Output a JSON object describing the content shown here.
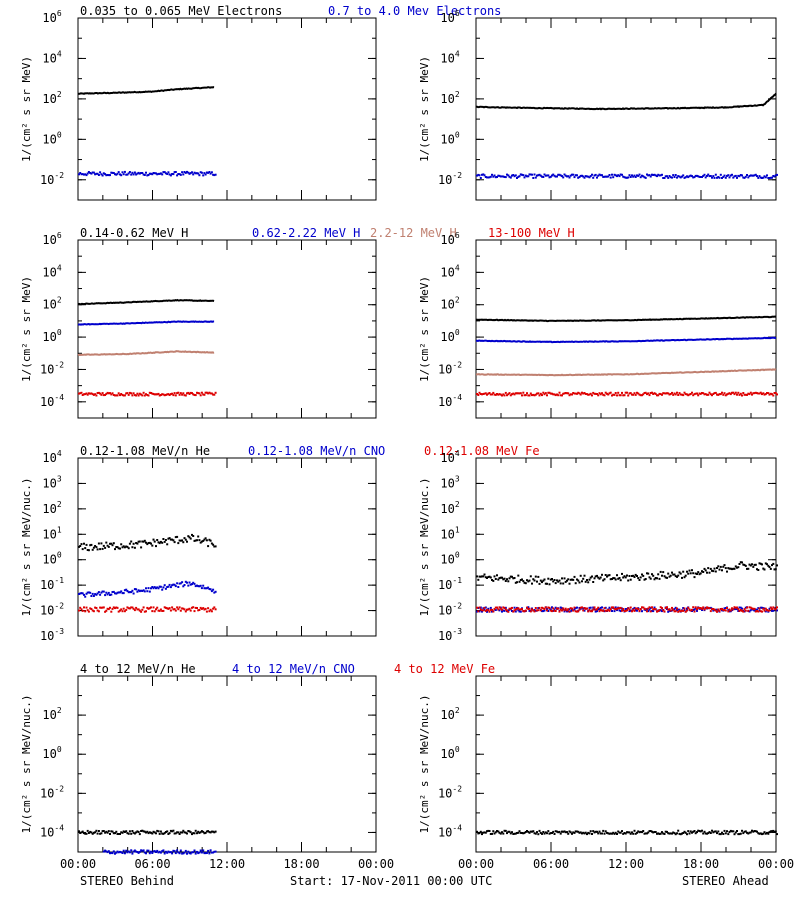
{
  "footer": {
    "left": "STEREO Behind",
    "center": "Start: 17-Nov-2011 00:00 UTC",
    "right": "STEREO Ahead"
  },
  "xticks": [
    "00:00",
    "06:00",
    "12:00",
    "18:00",
    "00:00"
  ],
  "chart_data": [
    {
      "type": "scatter",
      "title_row": [
        {
          "text": "0.035 to 0.065 MeV Electrons",
          "color": "#000000"
        },
        {
          "text": "0.7 to 4.0 Mev Electrons",
          "color": "#0000cc"
        }
      ],
      "ylabel": "1/(cm² s sr MeV)",
      "yscale": "log",
      "ylim": [
        0.001,
        1000000
      ],
      "yticks": [
        {
          "e": -2
        },
        {
          "e": 0
        },
        {
          "e": 2
        },
        {
          "e": 4
        },
        {
          "e": 6
        }
      ],
      "xlim_hours": [
        0,
        24
      ],
      "panels": [
        {
          "name": "STEREO Behind",
          "series": [
            {
              "name": "0.035 to 0.065 MeV Electrons",
              "color": "#000000",
              "style": "line",
              "t_end": 11,
              "points": [
                [
                  0,
                  180
                ],
                [
                  3,
                  200
                ],
                [
                  6,
                  230
                ],
                [
                  8,
                  300
                ],
                [
                  11,
                  380
                ]
              ]
            },
            {
              "name": "0.7 to 4.0 Mev Electrons",
              "color": "#0000cc",
              "style": "dots",
              "t_end": 11,
              "points": [
                [
                  0,
                  0.02
                ],
                [
                  5,
                  0.02
                ],
                [
                  11,
                  0.02
                ]
              ]
            }
          ]
        },
        {
          "name": "STEREO Ahead",
          "series": [
            {
              "name": "0.035 to 0.065 MeV Electrons",
              "color": "#000000",
              "style": "line",
              "t_end": 24,
              "points": [
                [
                  0,
                  40
                ],
                [
                  5,
                  35
                ],
                [
                  10,
                  32
                ],
                [
                  15,
                  34
                ],
                [
                  20,
                  38
                ],
                [
                  23,
                  50
                ],
                [
                  24,
                  180
                ]
              ]
            },
            {
              "name": "0.7 to 4.0 Mev Electrons",
              "color": "#0000cc",
              "style": "dots",
              "t_end": 24,
              "points": [
                [
                  0,
                  0.015
                ],
                [
                  12,
                  0.015
                ],
                [
                  24,
                  0.015
                ]
              ]
            }
          ]
        }
      ]
    },
    {
      "type": "scatter",
      "title_row": [
        {
          "text": "0.14-0.62 MeV H",
          "color": "#000000"
        },
        {
          "text": "0.62-2.22 MeV H",
          "color": "#0000cc"
        },
        {
          "text": "2.2-12 MeV H",
          "color": "#c08070"
        },
        {
          "text": "13-100 MeV H",
          "color": "#dd0000"
        }
      ],
      "ylabel": "1/(cm² s sr MeV)",
      "yscale": "log",
      "ylim": [
        1e-05,
        1000000
      ],
      "yticks": [
        {
          "e": -4
        },
        {
          "e": -2
        },
        {
          "e": 0
        },
        {
          "e": 2
        },
        {
          "e": 4
        },
        {
          "e": 6
        }
      ],
      "xlim_hours": [
        0,
        24
      ],
      "panels": [
        {
          "name": "STEREO Behind",
          "series": [
            {
              "name": "0.14-0.62 MeV H",
              "color": "#000000",
              "style": "line",
              "t_end": 11,
              "points": [
                [
                  0,
                  110
                ],
                [
                  4,
                  140
                ],
                [
                  8,
                  190
                ],
                [
                  11,
                  170
                ]
              ]
            },
            {
              "name": "0.62-2.22 MeV H",
              "color": "#0000cc",
              "style": "line",
              "t_end": 11,
              "points": [
                [
                  0,
                  6
                ],
                [
                  4,
                  7
                ],
                [
                  8,
                  9
                ],
                [
                  11,
                  9
                ]
              ]
            },
            {
              "name": "2.2-12 MeV H",
              "color": "#c08070",
              "style": "line",
              "t_end": 11,
              "points": [
                [
                  0,
                  0.08
                ],
                [
                  4,
                  0.09
                ],
                [
                  8,
                  0.13
                ],
                [
                  11,
                  0.11
                ]
              ]
            },
            {
              "name": "13-100 MeV H",
              "color": "#dd0000",
              "style": "dots",
              "t_end": 11,
              "points": [
                [
                  0,
                  0.0003
                ],
                [
                  5,
                  0.0003
                ],
                [
                  11,
                  0.0003
                ]
              ]
            }
          ]
        },
        {
          "name": "STEREO Ahead",
          "series": [
            {
              "name": "0.14-0.62 MeV H",
              "color": "#000000",
              "style": "line",
              "t_end": 24,
              "points": [
                [
                  0,
                  12
                ],
                [
                  6,
                  10
                ],
                [
                  12,
                  11
                ],
                [
                  18,
                  14
                ],
                [
                  24,
                  18
                ]
              ]
            },
            {
              "name": "0.62-2.22 MeV H",
              "color": "#0000cc",
              "style": "line",
              "t_end": 24,
              "points": [
                [
                  0,
                  0.6
                ],
                [
                  6,
                  0.5
                ],
                [
                  12,
                  0.55
                ],
                [
                  18,
                  0.7
                ],
                [
                  24,
                  0.9
                ]
              ]
            },
            {
              "name": "2.2-12 MeV H",
              "color": "#c08070",
              "style": "line",
              "t_end": 24,
              "points": [
                [
                  0,
                  0.005
                ],
                [
                  6,
                  0.0045
                ],
                [
                  12,
                  0.005
                ],
                [
                  18,
                  0.007
                ],
                [
                  24,
                  0.01
                ]
              ]
            },
            {
              "name": "13-100 MeV H",
              "color": "#dd0000",
              "style": "dots",
              "t_end": 24,
              "points": [
                [
                  0,
                  0.0003
                ],
                [
                  12,
                  0.0003
                ],
                [
                  24,
                  0.0003
                ]
              ]
            }
          ]
        }
      ]
    },
    {
      "type": "scatter",
      "title_row": [
        {
          "text": "0.12-1.08 MeV/n He",
          "color": "#000000"
        },
        {
          "text": "0.12-1.08 MeV/n CNO",
          "color": "#0000cc"
        },
        {
          "text": "0.12-1.08 MeV Fe",
          "color": "#dd0000"
        }
      ],
      "ylabel": "1/(cm² s sr MeV/nuc.)",
      "yscale": "log",
      "ylim": [
        0.001,
        10000
      ],
      "yticks": [
        {
          "e": -3
        },
        {
          "e": -2
        },
        {
          "e": -1
        },
        {
          "e": 0
        },
        {
          "e": 1
        },
        {
          "e": 2
        },
        {
          "e": 3
        },
        {
          "e": 4
        }
      ],
      "xlim_hours": [
        0,
        24
      ],
      "panels": [
        {
          "name": "STEREO Behind",
          "series": [
            {
              "name": "0.12-1.08 MeV/n He",
              "color": "#000000",
              "style": "dots",
              "t_end": 11,
              "points": [
                [
                  0,
                  3
                ],
                [
                  5,
                  4
                ],
                [
                  9,
                  7
                ],
                [
                  11,
                  4
                ]
              ]
            },
            {
              "name": "0.12-1.08 MeV/n CNO",
              "color": "#0000cc",
              "style": "dots",
              "t_end": 11,
              "points": [
                [
                  0,
                  0.04
                ],
                [
                  5,
                  0.06
                ],
                [
                  9,
                  0.12
                ],
                [
                  11,
                  0.06
                ]
              ]
            },
            {
              "name": "0.12-1.08 MeV Fe",
              "color": "#dd0000",
              "style": "dots",
              "t_end": 11,
              "points": [
                [
                  0,
                  0.011
                ],
                [
                  11,
                  0.011
                ]
              ]
            }
          ]
        },
        {
          "name": "STEREO Ahead",
          "series": [
            {
              "name": "0.12-1.08 MeV/n He",
              "color": "#000000",
              "style": "dots",
              "t_end": 24,
              "points": [
                [
                  0,
                  0.2
                ],
                [
                  6,
                  0.15
                ],
                [
                  12,
                  0.2
                ],
                [
                  18,
                  0.3
                ],
                [
                  21,
                  0.6
                ],
                [
                  24,
                  0.5
                ]
              ]
            },
            {
              "name": "0.12-1.08 MeV/n CNO",
              "color": "#0000cc",
              "style": "dots",
              "t_end": 24,
              "points": [
                [
                  0,
                  0.011
                ],
                [
                  24,
                  0.011
                ]
              ]
            },
            {
              "name": "0.12-1.08 MeV Fe",
              "color": "#dd0000",
              "style": "dots",
              "t_end": 24,
              "points": [
                [
                  0,
                  0.011
                ],
                [
                  24,
                  0.011
                ]
              ]
            }
          ]
        }
      ]
    },
    {
      "type": "scatter",
      "title_row": [
        {
          "text": "4 to 12 MeV/n He",
          "color": "#000000"
        },
        {
          "text": "4 to 12 MeV/n CNO",
          "color": "#0000cc"
        },
        {
          "text": "4 to 12 MeV Fe",
          "color": "#dd0000"
        }
      ],
      "ylabel": "1/(cm² s sr MeV/nuc.)",
      "yscale": "log",
      "ylim": [
        1e-05,
        10000
      ],
      "yticks": [
        {
          "e": -4
        },
        {
          "e": -2
        },
        {
          "e": 0
        },
        {
          "e": 2
        }
      ],
      "xlim_hours": [
        0,
        24
      ],
      "panels": [
        {
          "name": "STEREO Behind",
          "series": [
            {
              "name": "4 to 12 MeV/n He",
              "color": "#000000",
              "style": "dots",
              "t_end": 11,
              "points": [
                [
                  0,
                  0.0001
                ],
                [
                  11,
                  0.0001
                ]
              ]
            },
            {
              "name": "4 to 12 MeV/n CNO",
              "color": "#0000cc",
              "style": "dots",
              "t_end": 11,
              "points": [
                [
                  2,
                  1e-05
                ],
                [
                  9,
                  1e-05
                ]
              ]
            }
          ]
        },
        {
          "name": "STEREO Ahead",
          "series": [
            {
              "name": "4 to 12 MeV/n He",
              "color": "#000000",
              "style": "dots",
              "t_end": 24,
              "points": [
                [
                  0,
                  0.0001
                ],
                [
                  24,
                  0.0001
                ]
              ]
            }
          ]
        }
      ]
    }
  ]
}
